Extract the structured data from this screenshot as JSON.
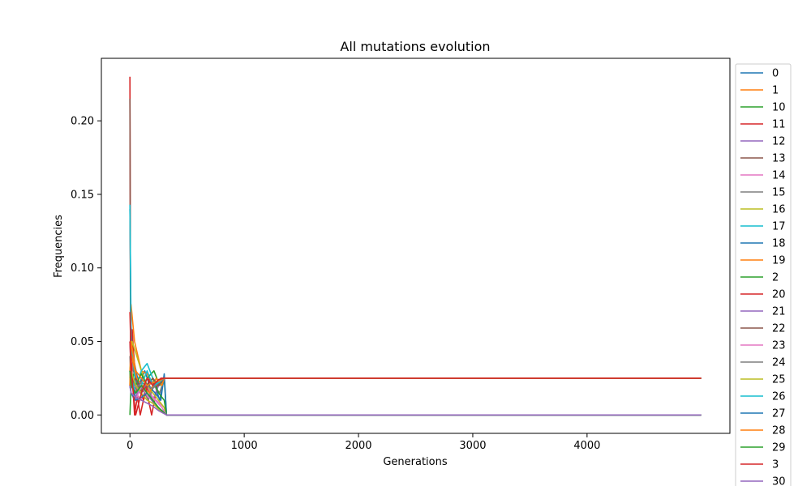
{
  "chart_data": {
    "type": "line",
    "title": "All mutations evolution",
    "xlabel": "Generations",
    "ylabel": "Frequencies",
    "xlim": [
      -250,
      5250
    ],
    "ylim": [
      -0.0125,
      0.2425
    ],
    "xticks": [
      0,
      1000,
      2000,
      3000,
      4000
    ],
    "xtick_labels": [
      "0",
      "1000",
      "2000",
      "3000",
      "4000"
    ],
    "yticks": [
      0.0,
      0.05,
      0.1,
      0.15,
      0.2
    ],
    "ytick_labels": [
      "0.00",
      "0.05",
      "0.10",
      "0.15",
      "0.20"
    ],
    "grid": false,
    "legend_position": "outside right",
    "legend_visible": [
      "0",
      "1",
      "10",
      "11",
      "12",
      "13",
      "14",
      "15",
      "16",
      "17",
      "18",
      "19",
      "2",
      "20",
      "21",
      "22",
      "23",
      "24",
      "25",
      "26",
      "27",
      "28",
      "29",
      "3",
      "30"
    ],
    "colors": [
      "#1f77b4",
      "#ff7f0e",
      "#2ca02c",
      "#d62728",
      "#9467bd",
      "#8c564b",
      "#e377c2",
      "#7f7f7f",
      "#bcbd22",
      "#17becf"
    ],
    "series": [
      {
        "name": "0",
        "x": [
          0,
          10,
          40,
          80,
          130,
          180,
          220,
          260,
          300,
          4999
        ],
        "y": [
          0.14,
          0.06,
          0.035,
          0.02,
          0.03,
          0.018,
          0.02,
          0.01,
          0.025,
          0.025
        ]
      },
      {
        "name": "1",
        "x": [
          0,
          10,
          40,
          70,
          100,
          150,
          200,
          250,
          300,
          4999
        ],
        "y": [
          0.02,
          0.075,
          0.05,
          0.04,
          0.03,
          0.028,
          0.02,
          0.024,
          0.025,
          0.025
        ]
      },
      {
        "name": "10",
        "x": [
          0,
          10,
          40,
          90,
          150,
          210,
          260,
          300,
          320,
          4999
        ],
        "y": [
          0.0,
          0.02,
          0.03,
          0.015,
          0.025,
          0.03,
          0.02,
          0.025,
          0.0,
          0.0
        ]
      },
      {
        "name": "11",
        "x": [
          0,
          5,
          20,
          50,
          90,
          140,
          190,
          240,
          300,
          4999
        ],
        "y": [
          0.23,
          0.05,
          0.058,
          0.02,
          0.0,
          0.018,
          0.0,
          0.02,
          0.025,
          0.025
        ]
      },
      {
        "name": "12",
        "x": [
          0,
          10,
          40,
          90,
          140,
          200,
          250,
          300,
          4999
        ],
        "y": [
          0.05,
          0.03,
          0.02,
          0.015,
          0.02,
          0.01,
          0.02,
          0.025,
          0.025
        ]
      },
      {
        "name": "13",
        "x": [
          0,
          5,
          30,
          70,
          120,
          170,
          230,
          280,
          300,
          4999
        ],
        "y": [
          0.215,
          0.06,
          0.03,
          0.02,
          0.025,
          0.015,
          0.022,
          0.025,
          0.025,
          0.025
        ]
      },
      {
        "name": "14",
        "x": [
          0,
          10,
          50,
          100,
          150,
          200,
          260,
          300,
          320,
          4999
        ],
        "y": [
          0.03,
          0.02,
          0.015,
          0.01,
          0.02,
          0.012,
          0.008,
          0.005,
          0.0,
          0.0
        ]
      },
      {
        "name": "15",
        "x": [
          0,
          10,
          50,
          110,
          160,
          210,
          260,
          300,
          4999
        ],
        "y": [
          0.04,
          0.025,
          0.02,
          0.018,
          0.01,
          0.02,
          0.015,
          0.025,
          0.025
        ]
      },
      {
        "name": "16",
        "x": [
          0,
          20,
          60,
          100,
          150,
          200,
          250,
          300,
          320,
          4999
        ],
        "y": [
          0.03,
          0.05,
          0.04,
          0.03,
          0.02,
          0.015,
          0.01,
          0.005,
          0.0,
          0.0
        ]
      },
      {
        "name": "17",
        "x": [
          0,
          10,
          50,
          100,
          150,
          200,
          250,
          300,
          4999
        ],
        "y": [
          0.143,
          0.05,
          0.02,
          0.03,
          0.035,
          0.025,
          0.02,
          0.025,
          0.025
        ]
      },
      {
        "name": "18",
        "x": [
          0,
          10,
          50,
          100,
          160,
          220,
          270,
          300,
          320,
          4999
        ],
        "y": [
          0.02,
          0.03,
          0.01,
          0.025,
          0.02,
          0.015,
          0.01,
          0.028,
          0.0,
          0.0
        ]
      },
      {
        "name": "19",
        "x": [
          0,
          15,
          60,
          110,
          170,
          230,
          280,
          300,
          4999
        ],
        "y": [
          0.03,
          0.04,
          0.025,
          0.02,
          0.015,
          0.025,
          0.02,
          0.025,
          0.025
        ]
      },
      {
        "name": "2",
        "x": [
          0,
          10,
          50,
          100,
          150,
          200,
          250,
          300,
          320,
          4999
        ],
        "y": [
          0.025,
          0.03,
          0.02,
          0.028,
          0.02,
          0.025,
          0.015,
          0.01,
          0.0,
          0.0
        ]
      },
      {
        "name": "20",
        "x": [
          0,
          10,
          40,
          80,
          120,
          170,
          220,
          270,
          300,
          4999
        ],
        "y": [
          0.07,
          0.04,
          0.0,
          0.02,
          0.01,
          0.025,
          0.02,
          0.025,
          0.025,
          0.025
        ]
      },
      {
        "name": "21",
        "x": [
          0,
          10,
          40,
          90,
          140,
          190,
          240,
          300,
          320,
          4999
        ],
        "y": [
          0.02,
          0.015,
          0.01,
          0.02,
          0.015,
          0.01,
          0.005,
          0.002,
          0.0,
          0.0
        ]
      },
      {
        "name": "22",
        "x": [
          0,
          10,
          50,
          100,
          150,
          200,
          250,
          300,
          4999
        ],
        "y": [
          0.03,
          0.02,
          0.025,
          0.015,
          0.02,
          0.025,
          0.02,
          0.025,
          0.025
        ]
      },
      {
        "name": "23",
        "x": [
          0,
          10,
          50,
          100,
          160,
          220,
          280,
          320,
          4999
        ],
        "y": [
          0.02,
          0.015,
          0.01,
          0.02,
          0.012,
          0.01,
          0.005,
          0.0,
          0.0
        ]
      },
      {
        "name": "24",
        "x": [
          0,
          10,
          50,
          100,
          150,
          200,
          250,
          300,
          4999
        ],
        "y": [
          0.03,
          0.02,
          0.018,
          0.022,
          0.02,
          0.018,
          0.022,
          0.025,
          0.025
        ]
      },
      {
        "name": "25",
        "x": [
          0,
          10,
          50,
          100,
          150,
          200,
          250,
          320,
          4999
        ],
        "y": [
          0.02,
          0.03,
          0.02,
          0.015,
          0.01,
          0.008,
          0.004,
          0.0,
          0.0
        ]
      },
      {
        "name": "26",
        "x": [
          0,
          10,
          50,
          100,
          150,
          200,
          250,
          300,
          4999
        ],
        "y": [
          0.03,
          0.025,
          0.015,
          0.02,
          0.03,
          0.02,
          0.022,
          0.025,
          0.025
        ]
      },
      {
        "name": "27",
        "x": [
          0,
          10,
          50,
          100,
          150,
          200,
          250,
          320,
          4999
        ],
        "y": [
          0.02,
          0.015,
          0.01,
          0.012,
          0.015,
          0.01,
          0.005,
          0.0,
          0.0
        ]
      },
      {
        "name": "28",
        "x": [
          0,
          10,
          50,
          100,
          150,
          200,
          250,
          300,
          4999
        ],
        "y": [
          0.02,
          0.05,
          0.03,
          0.025,
          0.02,
          0.022,
          0.023,
          0.025,
          0.025
        ]
      },
      {
        "name": "29",
        "x": [
          0,
          10,
          50,
          100,
          150,
          200,
          250,
          320,
          4999
        ],
        "y": [
          0.03,
          0.02,
          0.015,
          0.02,
          0.015,
          0.01,
          0.005,
          0.0,
          0.0
        ]
      },
      {
        "name": "3",
        "x": [
          0,
          10,
          50,
          100,
          150,
          200,
          250,
          300,
          4999
        ],
        "y": [
          0.05,
          0.03,
          0.0,
          0.015,
          0.025,
          0.02,
          0.024,
          0.025,
          0.025
        ]
      },
      {
        "name": "30",
        "x": [
          0,
          10,
          50,
          100,
          150,
          200,
          250,
          320,
          4999
        ],
        "y": [
          0.02,
          0.015,
          0.012,
          0.01,
          0.008,
          0.006,
          0.003,
          0.0,
          0.0
        ]
      }
    ]
  }
}
